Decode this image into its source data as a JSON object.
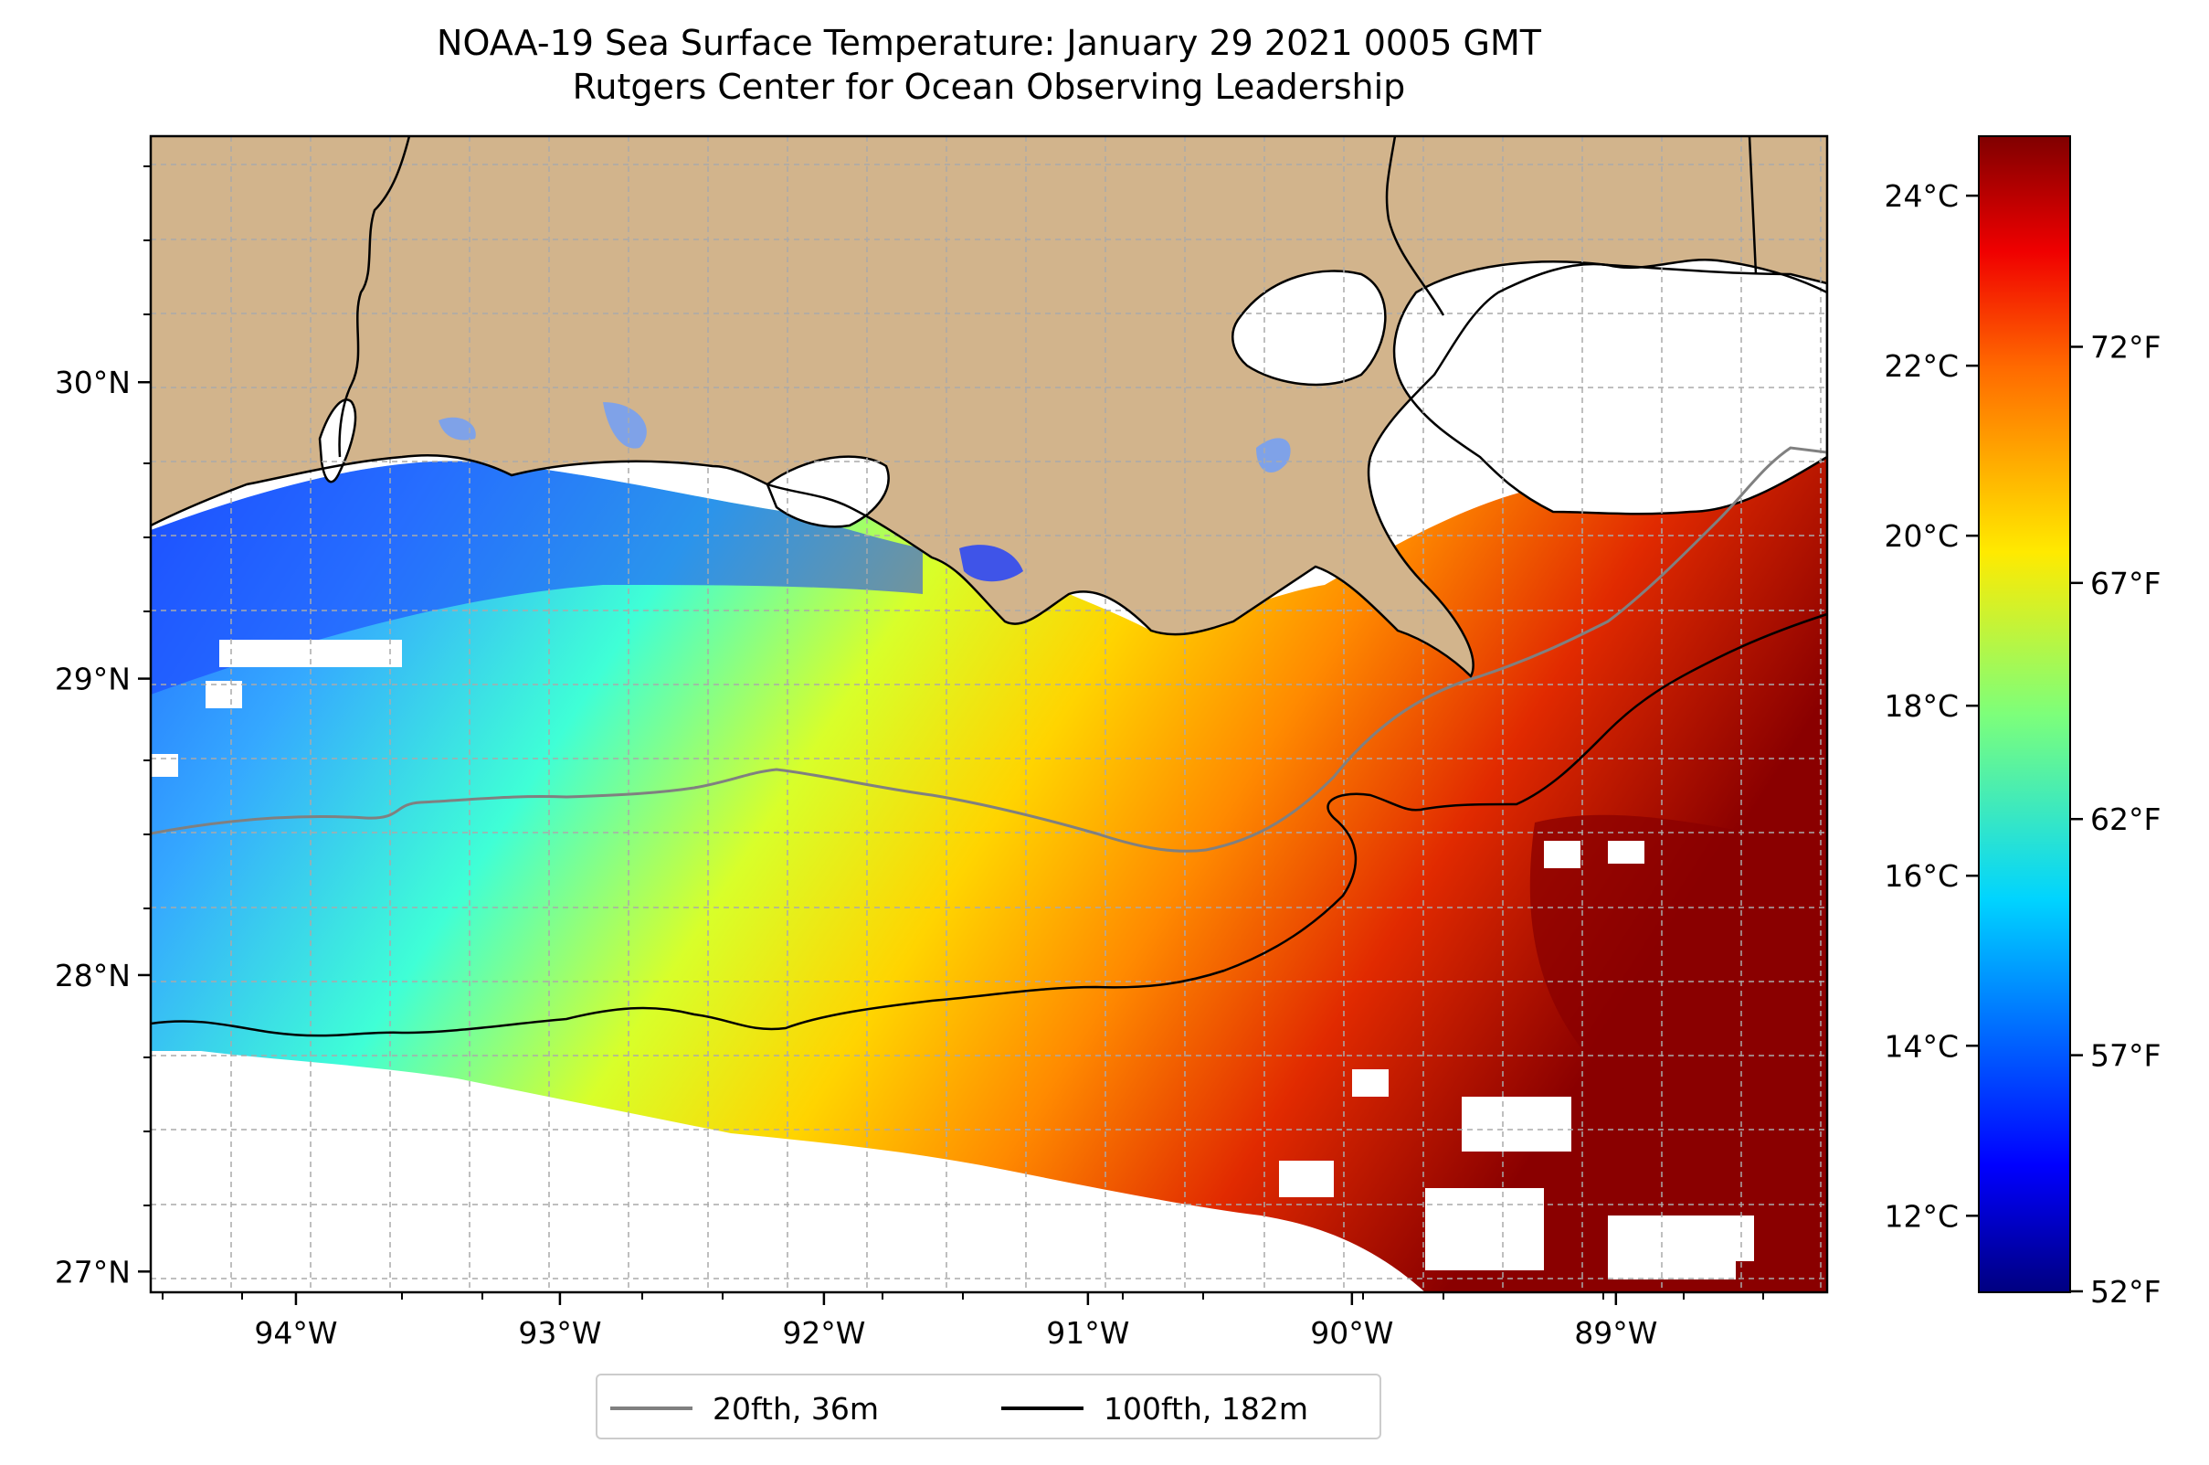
{
  "title": {
    "line1": "NOAA-19 Sea Surface Temperature: January 29 2021 0005 GMT",
    "line2": "Rutgers Center for Ocean Observing Leadership"
  },
  "map": {
    "lon_range": [
      -94.55,
      -88.2
    ],
    "lat_range": [
      26.93,
      30.83
    ],
    "x_ticks": [
      {
        "lon": -94,
        "label": "94°W"
      },
      {
        "lon": -93,
        "label": "93°W"
      },
      {
        "lon": -92,
        "label": "92°W"
      },
      {
        "lon": -91,
        "label": "91°W"
      },
      {
        "lon": -90,
        "label": "90°W"
      },
      {
        "lon": -89,
        "label": "89°W"
      }
    ],
    "y_ticks": [
      {
        "lat": 30,
        "label": "30°N"
      },
      {
        "lat": 29,
        "label": "29°N"
      },
      {
        "lat": 28,
        "label": "28°N"
      },
      {
        "lat": 27,
        "label": "27°N"
      }
    ],
    "gridlines": true,
    "land_color": "#d2b48c",
    "missing_data_color": "#ffffff"
  },
  "colorbar": {
    "colormap": "jet",
    "celsius_range": [
      11.1,
      24.7
    ],
    "celsius_ticks": [
      {
        "value": 24,
        "label": "24°C"
      },
      {
        "value": 22,
        "label": "22°C"
      },
      {
        "value": 20,
        "label": "20°C"
      },
      {
        "value": 18,
        "label": "18°C"
      },
      {
        "value": 16,
        "label": "16°C"
      },
      {
        "value": 14,
        "label": "14°C"
      },
      {
        "value": 12,
        "label": "12°C"
      }
    ],
    "fahrenheit_ticks": [
      {
        "value": 72,
        "label": "72°F"
      },
      {
        "value": 67,
        "label": "67°F"
      },
      {
        "value": 62,
        "label": "62°F"
      },
      {
        "value": 57,
        "label": "57°F"
      },
      {
        "value": 52,
        "label": "52°F"
      }
    ]
  },
  "legend": {
    "items": [
      {
        "label": "20fth, 36m",
        "color": "#808080"
      },
      {
        "label": "100fth, 182m",
        "color": "#000000"
      }
    ]
  }
}
